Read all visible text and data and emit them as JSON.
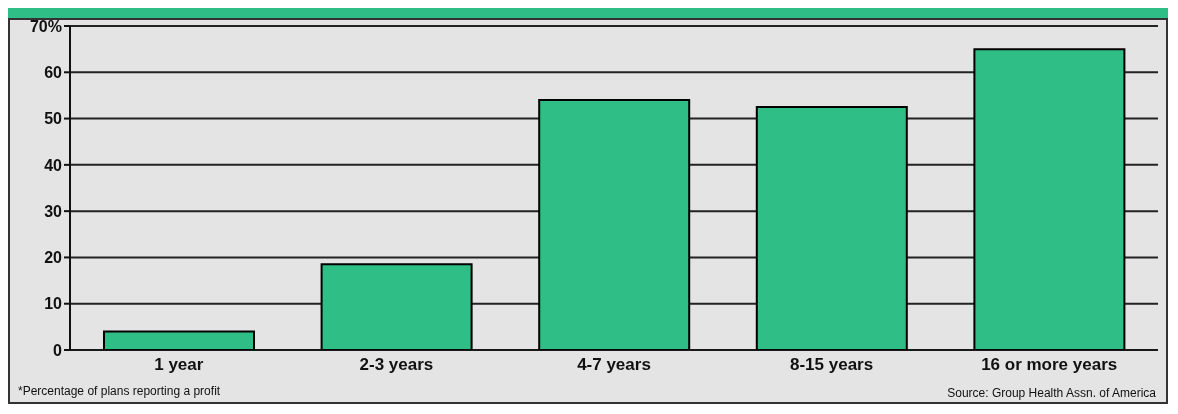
{
  "chart_data": {
    "type": "bar",
    "categories": [
      "1 year",
      "2-3 years",
      "4-7 years",
      "8-15 years",
      "16 or more years"
    ],
    "values": [
      4,
      18.5,
      54,
      52.5,
      65
    ],
    "color": "#2fbf86",
    "ylim": [
      0,
      70
    ],
    "yticks": [
      0,
      10,
      20,
      30,
      40,
      50,
      60,
      {
        "value": 70,
        "label": "70%"
      }
    ],
    "grid": "y",
    "annotations": [
      "*Percentage of plans reporting a profit",
      "Source: Group Health Assn. of America"
    ]
  }
}
